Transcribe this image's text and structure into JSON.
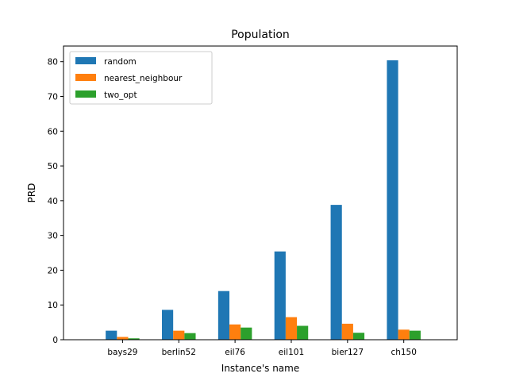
{
  "chart_data": {
    "type": "bar",
    "title": "Population",
    "xlabel": "Instance's name",
    "ylabel": "PRD",
    "categories": [
      "bays29",
      "berlin52",
      "eil76",
      "eil101",
      "bier127",
      "ch150"
    ],
    "series": [
      {
        "name": "random",
        "color": "#1f77b4",
        "values": [
          2.6,
          8.6,
          14.0,
          25.4,
          38.8,
          80.4
        ]
      },
      {
        "name": "nearest_neighbour",
        "color": "#ff7f0e",
        "values": [
          0.8,
          2.6,
          4.4,
          6.5,
          4.6,
          2.9
        ]
      },
      {
        "name": "two_opt",
        "color": "#2ca02c",
        "values": [
          0.4,
          1.9,
          3.5,
          4.0,
          2.0,
          2.6
        ]
      }
    ],
    "ylim": [
      0,
      84.5
    ],
    "yticks": [
      0,
      10,
      20,
      30,
      40,
      50,
      60,
      70,
      80
    ],
    "grid": false,
    "legend_position": "top-left"
  }
}
